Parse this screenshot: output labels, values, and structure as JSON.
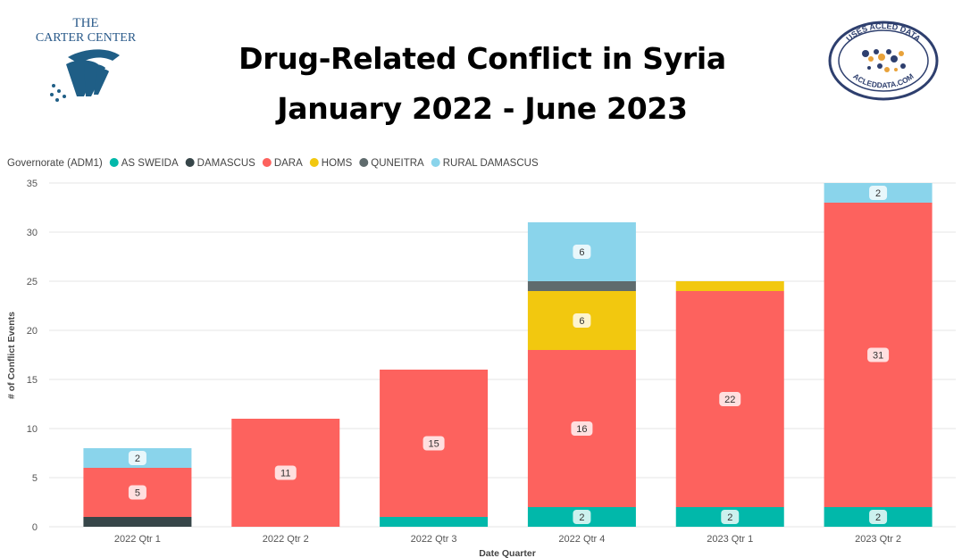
{
  "header": {
    "title_line1": "Drug-Related Conflict in Syria",
    "title_line2": "January 2022 - June 2023"
  },
  "logos": {
    "carter_line1": "THE",
    "carter_line2": "CARTER CENTER",
    "acled_top": "USES ACLED DATA",
    "acled_bottom": "ACLEDDATA.COM"
  },
  "chart_data": {
    "type": "bar",
    "stacked": true,
    "title": "",
    "xlabel": "Date Quarter",
    "ylabel": "# of Conflict Events",
    "ylim": [
      0,
      35
    ],
    "yticks": [
      0,
      5,
      10,
      15,
      20,
      25,
      30,
      35
    ],
    "grid": true,
    "legend_title": "Governorate (ADM1)",
    "legend_position": "top-left",
    "categories": [
      "2022 Qtr 1",
      "2022 Qtr 2",
      "2022 Qtr 3",
      "2022 Qtr 4",
      "2023 Qtr 1",
      "2023 Qtr 2"
    ],
    "series": [
      {
        "name": "AS SWEIDA",
        "color": "#01B8AA",
        "values": [
          0,
          0,
          1,
          2,
          2,
          2
        ]
      },
      {
        "name": "DAMASCUS",
        "color": "#374649",
        "values": [
          1,
          0,
          0,
          0,
          0,
          0
        ]
      },
      {
        "name": "DARA",
        "color": "#FD625E",
        "values": [
          5,
          11,
          15,
          16,
          22,
          31
        ]
      },
      {
        "name": "HOMS",
        "color": "#F2C80F",
        "values": [
          0,
          0,
          0,
          6,
          1,
          0
        ]
      },
      {
        "name": "QUNEITRA",
        "color": "#5F6B6D",
        "values": [
          0,
          0,
          0,
          1,
          0,
          0
        ]
      },
      {
        "name": "RURAL DAMASCUS",
        "color": "#8AD4EB",
        "values": [
          2,
          0,
          0,
          6,
          0,
          2
        ]
      }
    ]
  }
}
